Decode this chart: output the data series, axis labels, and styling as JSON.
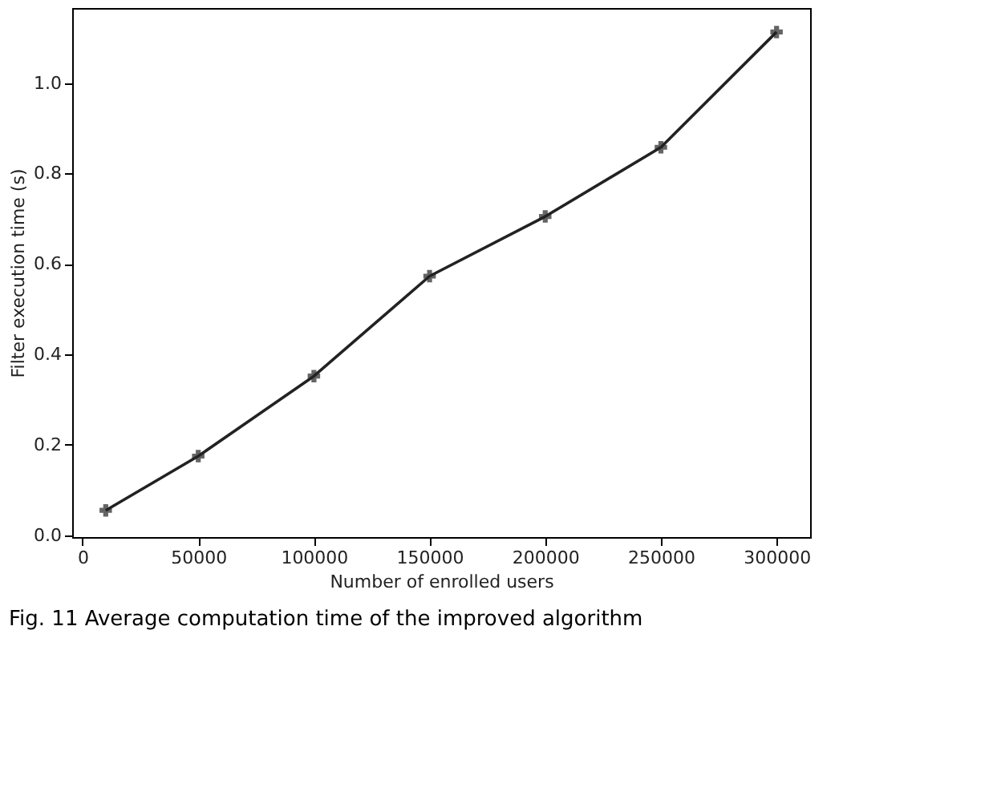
{
  "chart_data": {
    "type": "line",
    "xlabel": "Number of enrolled users",
    "ylabel": "Filter execution time (s)",
    "x": [
      10000,
      50000,
      100000,
      150000,
      200000,
      250000,
      300000
    ],
    "series": [
      {
        "color": "#222222",
        "values": [
          0.055,
          0.175,
          0.352,
          0.573,
          0.705,
          0.858,
          1.113
        ]
      }
    ],
    "xlim": [
      -4500,
      314500
    ],
    "xticks": [
      0,
      50000,
      100000,
      150000,
      200000,
      250000,
      300000
    ],
    "ylim": [
      -0.004,
      1.166
    ],
    "yticks": [
      {
        "value": 0,
        "label": "0.0"
      },
      0.2,
      0.4,
      0.6,
      0.8,
      {
        "value": 1,
        "label": "1.0"
      }
    ],
    "marker": "cross",
    "line_style": "solid",
    "grid": false,
    "annotations": [
      "Fig. 11 Average computation time of the improved algorithm"
    ]
  }
}
